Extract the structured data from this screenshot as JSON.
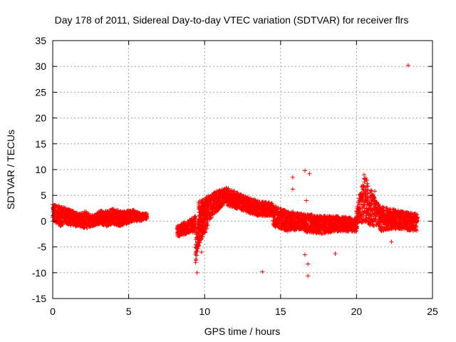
{
  "chart_data": {
    "type": "scatter",
    "title": "Day 178 of 2011, Sidereal Day-to-day VTEC variation (SDTVAR) for receiver flrs",
    "xlabel": "GPS time / hours",
    "ylabel": "SDTVAR / TECUs",
    "xlim": [
      0,
      25
    ],
    "ylim": [
      -15,
      35
    ],
    "xticks": [
      0,
      5,
      10,
      15,
      20,
      25
    ],
    "yticks": [
      -15,
      -10,
      -5,
      0,
      5,
      10,
      15,
      20,
      25,
      30,
      35
    ],
    "grid": true,
    "marker": "+",
    "color": "#ff0000",
    "trace": [
      {
        "x": [
          0.0,
          6.2
        ],
        "y": [
          [
            0,
            3.5
          ],
          [
            -1,
            3
          ],
          [
            -0.5,
            2.5
          ],
          [
            -1,
            2
          ],
          [
            -1,
            1.5
          ],
          [
            -1.5,
            2
          ],
          [
            -1,
            1
          ],
          [
            -0.5,
            2
          ],
          [
            -1,
            2
          ],
          [
            -0.5,
            2.5
          ],
          [
            -1,
            2
          ],
          [
            -0.5,
            2
          ],
          [
            0,
            2.2
          ],
          [
            0,
            1.5
          ],
          [
            0.5,
            1.5
          ]
        ]
      },
      {
        "x": [
          8.2,
          9.4
        ],
        "y": [
          [
            -3,
            -1
          ],
          [
            -2.5,
            0
          ],
          [
            -2,
            1
          ]
        ]
      },
      {
        "x": [
          9.4,
          10.2
        ],
        "y": [
          [
            -8,
            -2
          ],
          [
            -4,
            3
          ],
          [
            -1,
            4
          ]
        ]
      },
      {
        "x": [
          9.6,
          11.5
        ],
        "y": [
          [
            -3,
            4
          ],
          [
            0,
            5
          ],
          [
            2,
            6
          ],
          [
            4,
            6.5
          ]
        ]
      },
      {
        "x": [
          11.5,
          14.5
        ],
        "y": [
          [
            3,
            6.5
          ],
          [
            2,
            5
          ],
          [
            1,
            4
          ],
          [
            1,
            3.5
          ]
        ]
      },
      {
        "x": [
          14.5,
          16.5
        ],
        "y": [
          [
            -1,
            3
          ],
          [
            -2,
            2
          ],
          [
            -1.5,
            1.5
          ]
        ]
      },
      {
        "x": [
          16.5,
          20.0
        ],
        "y": [
          [
            -2,
            1.5
          ],
          [
            -2.5,
            1
          ],
          [
            -2,
            1
          ],
          [
            -2,
            0.5
          ]
        ]
      },
      {
        "x": [
          20.0,
          21.5
        ],
        "y": [
          [
            -1.5,
            2
          ],
          [
            0,
            9
          ],
          [
            -1,
            6
          ],
          [
            -1,
            3
          ]
        ]
      },
      {
        "x": [
          21.5,
          24.0
        ],
        "y": [
          [
            -2,
            3
          ],
          [
            -1.5,
            2
          ],
          [
            -2,
            1.5
          ]
        ]
      }
    ],
    "scatter": [
      [
        23.4,
        30.2
      ],
      [
        9.5,
        -10.0
      ],
      [
        13.8,
        -9.8
      ],
      [
        16.8,
        -10.6
      ],
      [
        15.8,
        8.5
      ],
      [
        15.8,
        6.2
      ],
      [
        16.6,
        9.8
      ],
      [
        16.9,
        9.2
      ],
      [
        16.8,
        -8.3
      ],
      [
        18.6,
        -6.3
      ],
      [
        16.6,
        -6.5
      ],
      [
        21.2,
        5.8
      ],
      [
        22.3,
        -4.0
      ],
      [
        9.8,
        -6.0
      ],
      [
        16.7,
        4.0
      ],
      [
        20.5,
        9.0
      ]
    ]
  }
}
